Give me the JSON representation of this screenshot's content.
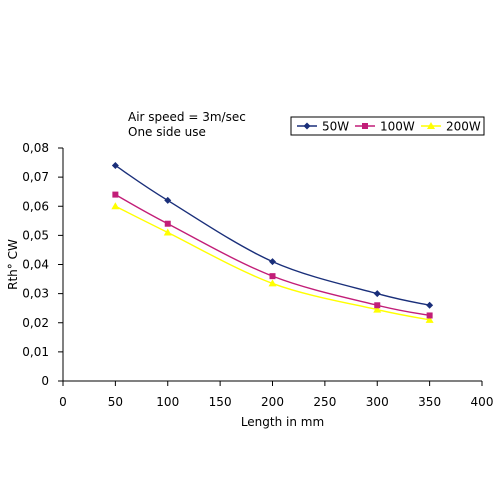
{
  "chart_data": {
    "type": "line",
    "annotation_lines": [
      "Air speed = 3m/sec",
      "One side use"
    ],
    "xlabel": "Length in mm",
    "ylabel": "Rth° CW",
    "xlim": [
      0,
      400
    ],
    "ylim": [
      0,
      0.08
    ],
    "x_ticks": [
      "0",
      "50",
      "100",
      "150",
      "200",
      "250",
      "300",
      "350",
      "400"
    ],
    "y_ticks": [
      "0",
      "0,01",
      "0,02",
      "0,03",
      "0,04",
      "0,05",
      "0,06",
      "0,07",
      "0,08"
    ],
    "grid": false,
    "legend_position": "top-right",
    "x": [
      50,
      100,
      200,
      300,
      350
    ],
    "series": [
      {
        "name": "50W",
        "color": "#1a2f7a",
        "marker": "diamond",
        "values": [
          0.074,
          0.062,
          0.041,
          0.03,
          0.026
        ]
      },
      {
        "name": "100W",
        "color": "#c21e78",
        "marker": "square",
        "values": [
          0.064,
          0.054,
          0.036,
          0.026,
          0.0225
        ]
      },
      {
        "name": "200W",
        "color": "#ffff00",
        "marker": "triangle",
        "values": [
          0.06,
          0.051,
          0.0335,
          0.0245,
          0.021
        ]
      }
    ]
  }
}
